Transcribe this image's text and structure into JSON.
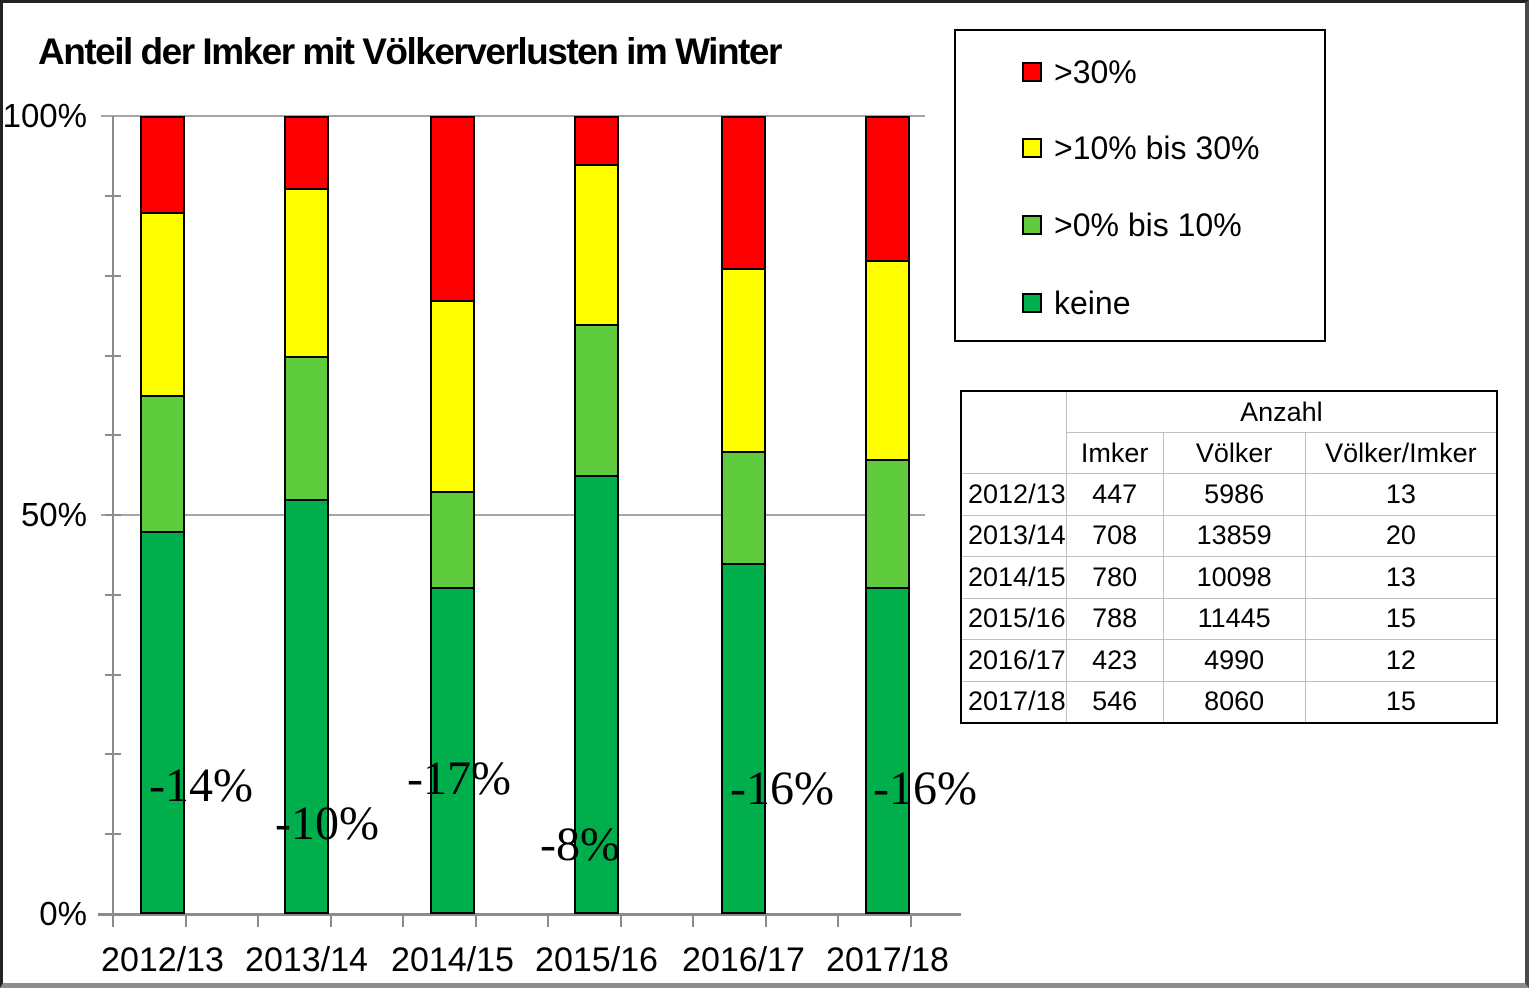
{
  "page": {
    "title": "Anteil der Imker mit Völkerverlusten im Winter"
  },
  "colors": {
    "red": "#FF0000",
    "yellow": "#FFFF00",
    "light_green": "#5ECC3C",
    "dark_green": "#00AF4B",
    "axis_gray": "#8C8C8C",
    "grid_gray": "#A6A6A6",
    "table_line_gray": "#BFBFBF"
  },
  "legend": {
    "items": [
      {
        "label": ">30%",
        "color_key": "red"
      },
      {
        "label": ">10% bis 30%",
        "color_key": "yellow"
      },
      {
        "label": ">0% bis 10%",
        "color_key": "light_green"
      },
      {
        "label": "keine",
        "color_key": "dark_green"
      }
    ]
  },
  "chart_data": {
    "type": "bar",
    "stacked": true,
    "title": "Anteil der Imker mit Völkerverlusten im Winter",
    "xlabel": "",
    "ylabel": "",
    "ylim": [
      0,
      100
    ],
    "grid": "horizontal lines at 50% and 100%",
    "legend_position": "top-right box",
    "categories": [
      "2012/13",
      "2013/14",
      "2014/15",
      "2015/16",
      "2016/17",
      "2017/18"
    ],
    "series": [
      {
        "name": "keine",
        "color_key": "dark_green",
        "values": [
          48,
          52,
          41,
          55,
          44,
          41
        ]
      },
      {
        "name": ">0% bis 10%",
        "color_key": "light_green",
        "values": [
          17,
          18,
          12,
          19,
          14,
          16
        ]
      },
      {
        "name": ">10% bis 30%",
        "color_key": "yellow",
        "values": [
          23,
          21,
          24,
          20,
          23,
          25
        ]
      },
      {
        "name": ">30%",
        "color_key": "red",
        "values": [
          12,
          9,
          23,
          6,
          19,
          18
        ]
      }
    ],
    "y_ticks": [
      {
        "label": "100%",
        "value": 100
      },
      {
        "label": "50%",
        "value": 50
      },
      {
        "label": "0%",
        "value": 0
      }
    ],
    "annotations": [
      {
        "category": "2012/13",
        "label": "-14%",
        "value": -14
      },
      {
        "category": "2013/14",
        "label": "-10%",
        "value": -10
      },
      {
        "category": "2014/15",
        "label": "-17%",
        "value": -17
      },
      {
        "category": "2015/16",
        "label": "-8%",
        "value": -8
      },
      {
        "category": "2016/17",
        "label": "-16%",
        "value": -16
      },
      {
        "category": "2017/18",
        "label": "-16%",
        "value": -16
      }
    ]
  },
  "table": {
    "group_header": "Anzahl",
    "columns": [
      "Imker",
      "Völker",
      "Völker/Imker"
    ],
    "rows": [
      {
        "year": "2012/13",
        "imker": "447",
        "voelker": "5986",
        "voelker_imker": "13"
      },
      {
        "year": "2013/14",
        "imker": "708",
        "voelker": "13859",
        "voelker_imker": "20"
      },
      {
        "year": "2014/15",
        "imker": "780",
        "voelker": "10098",
        "voelker_imker": "13"
      },
      {
        "year": "2015/16",
        "imker": "788",
        "voelker": "11445",
        "voelker_imker": "15"
      },
      {
        "year": "2016/17",
        "imker": "423",
        "voelker": "4990",
        "voelker_imker": "12"
      },
      {
        "year": "2017/18",
        "imker": "546",
        "voelker": "8060",
        "voelker_imker": "15"
      }
    ]
  }
}
